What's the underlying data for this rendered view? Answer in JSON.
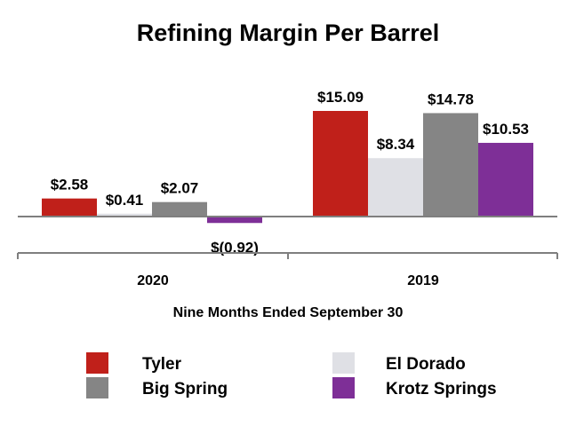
{
  "chart_data": {
    "type": "bar",
    "title": "Refining Margin Per Barrel",
    "xlabel": "Nine Months Ended September 30",
    "ylabel": "",
    "ylim": [
      -3,
      20
    ],
    "categories": [
      "2020",
      "2019"
    ],
    "series": [
      {
        "name": "Tyler",
        "color": "#c0201a",
        "values": [
          2.58,
          15.09
        ],
        "labels": [
          "$2.58",
          "$15.09"
        ]
      },
      {
        "name": "El Dorado",
        "color": "#dfe0e5",
        "values": [
          0.41,
          8.34
        ],
        "labels": [
          "$0.41",
          "$8.34"
        ]
      },
      {
        "name": "Big Spring",
        "color": "#858585",
        "values": [
          2.07,
          14.78
        ],
        "labels": [
          "$2.07",
          "$14.78"
        ]
      },
      {
        "name": "Krotz Springs",
        "color": "#7e2f97",
        "values": [
          -0.92,
          10.53
        ],
        "labels": [
          "$(0.92)",
          "$10.53"
        ]
      }
    ],
    "legend_position": "bottom",
    "grid": false
  }
}
